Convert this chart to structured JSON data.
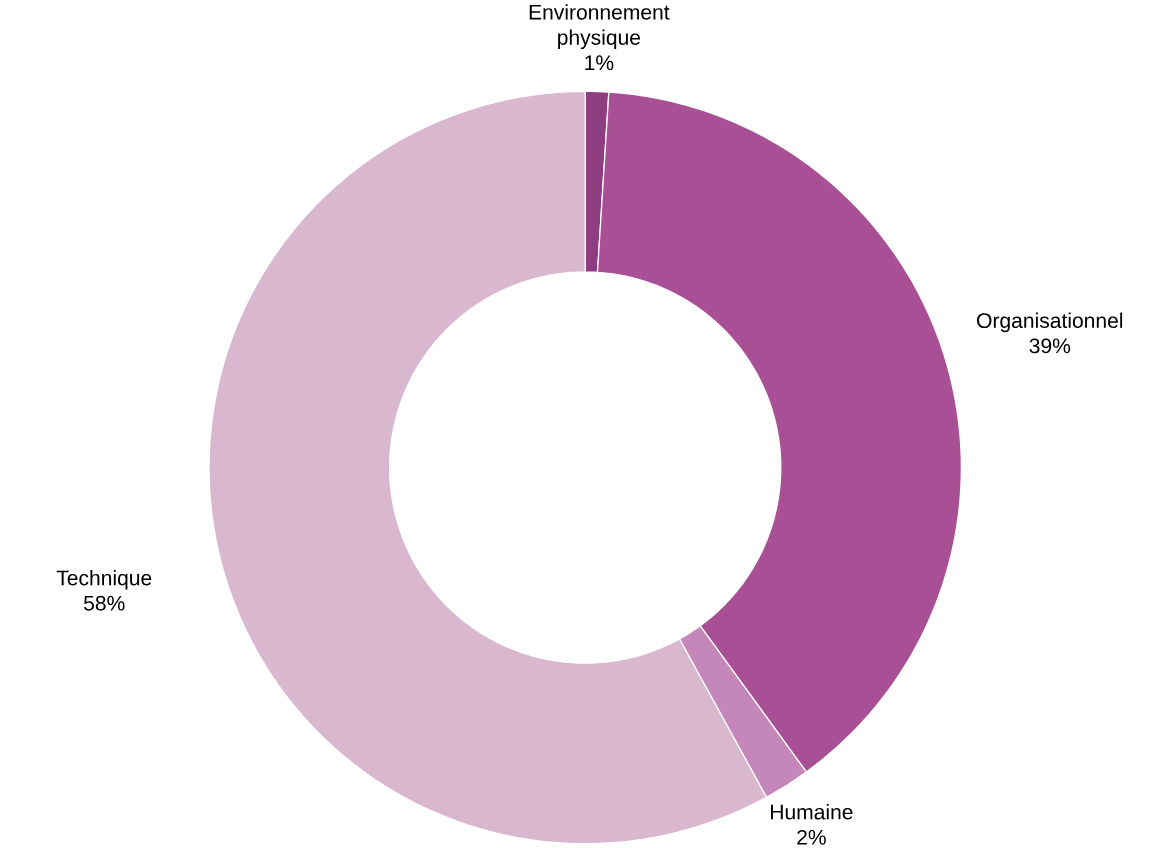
{
  "chart_data": {
    "type": "donut",
    "categories": [
      "Environnement physique",
      "Organisationnel",
      "Humaine",
      "Technique"
    ],
    "values": [
      1,
      39,
      2,
      58
    ],
    "value_labels": [
      "1%",
      "39%",
      "2%",
      "58%"
    ],
    "colors": [
      "#8e3d80",
      "#a84f96",
      "#c586b9",
      "#d9b7cf"
    ]
  }
}
